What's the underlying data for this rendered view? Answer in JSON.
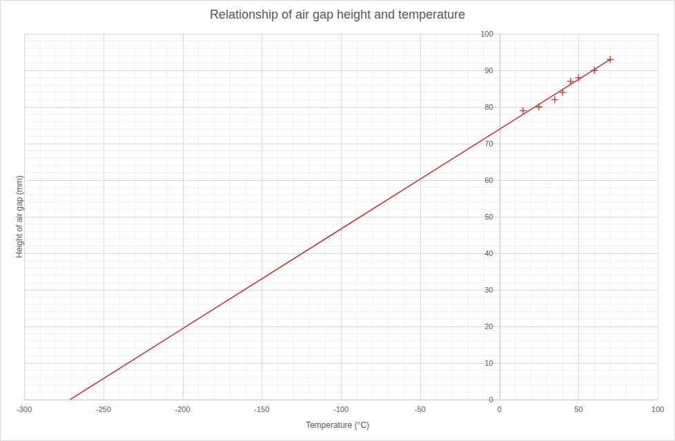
{
  "chart_data": {
    "type": "scatter",
    "title": "Relationship of air gap height and temperature",
    "x_label": "Temperature (°C)",
    "y_label": "Height of air gap (mm)",
    "xlim": [
      -300,
      100
    ],
    "ylim": [
      0,
      100
    ],
    "xticks": [
      -300,
      -250,
      -200,
      -150,
      -100,
      -50,
      0,
      50,
      100
    ],
    "yticks": [
      0,
      10,
      20,
      30,
      40,
      50,
      60,
      70,
      80,
      90,
      100
    ],
    "grid": true,
    "series": [
      {
        "type": "scatter",
        "marker": "plus",
        "color": "#d42a2a",
        "x": [
          15,
          25,
          35,
          40,
          45,
          50,
          60,
          70
        ],
        "values": [
          79,
          80,
          82,
          84,
          87,
          88,
          90,
          93
        ]
      },
      {
        "type": "line",
        "line_style": "solid",
        "color": "#d42a2a",
        "x": [
          -271,
          70
        ],
        "values": [
          0,
          93
        ]
      }
    ]
  }
}
